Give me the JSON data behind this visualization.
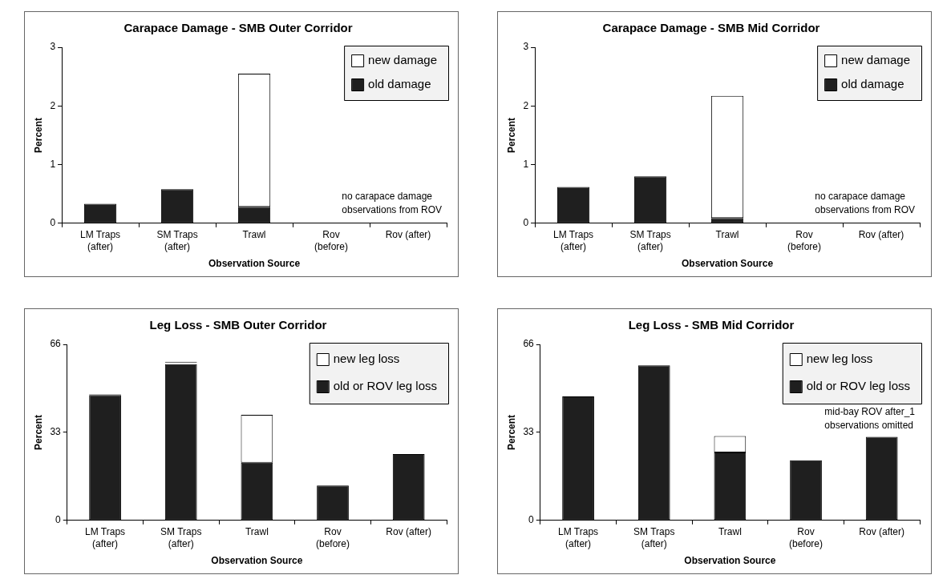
{
  "chart_data": [
    {
      "type": "bar",
      "title": "Carapace Damage - SMB Outer Corridor",
      "xlabel": "Observation Source",
      "ylabel": "Percent",
      "categories": [
        "LM Traps (after)",
        "SM Traps (after)",
        "Trawl",
        "Rov (before)",
        "Rov (after)"
      ],
      "stacked": true,
      "series": [
        {
          "name": "old damage",
          "color": "#1f1f1f",
          "values": [
            0.33,
            0.58,
            0.28,
            0,
            0
          ]
        },
        {
          "name": "new damage",
          "color": "#ffffff",
          "values": [
            0,
            0,
            2.27,
            0,
            0
          ]
        }
      ],
      "ylim": [
        0,
        3
      ],
      "yticks": [
        0,
        1,
        2,
        3
      ],
      "grid": false,
      "legend": "top right",
      "annotations": [
        "no carapace damage observations from ROV"
      ]
    },
    {
      "type": "bar",
      "title": "Carapace Damage - SMB Mid Corridor",
      "xlabel": "Observation Source",
      "ylabel": "Percent",
      "categories": [
        "LM Traps (after)",
        "SM Traps (after)",
        "Trawl",
        "Rov (before)",
        "Rov (after)"
      ],
      "stacked": true,
      "series": [
        {
          "name": "old damage",
          "color": "#1f1f1f",
          "values": [
            0.62,
            0.8,
            0.09,
            0,
            0
          ]
        },
        {
          "name": "new damage",
          "color": "#ffffff",
          "values": [
            0,
            0,
            2.08,
            0,
            0
          ]
        }
      ],
      "ylim": [
        0,
        3
      ],
      "yticks": [
        0,
        1,
        2,
        3
      ],
      "grid": false,
      "legend": "top right",
      "annotations": [
        "no carapace damage observations from ROV"
      ]
    },
    {
      "type": "bar",
      "title": "Leg Loss - SMB Outer Corridor",
      "xlabel": "Observation Source",
      "ylabel": "Percent",
      "categories": [
        "LM Traps (after)",
        "SM Traps (after)",
        "Trawl",
        "Rov (before)",
        "Rov (after)"
      ],
      "stacked": true,
      "series": [
        {
          "name": "old or ROV leg loss",
          "color": "#1f1f1f",
          "values": [
            47,
            58.6,
            21.6,
            13.1,
            24.9
          ]
        },
        {
          "name": "new leg loss",
          "color": "#ffffff",
          "values": [
            0.4,
            0.9,
            18,
            0,
            0
          ]
        }
      ],
      "ylim": [
        0,
        66
      ],
      "yticks": [
        0,
        33,
        66
      ],
      "grid": false,
      "legend": "top right"
    },
    {
      "type": "bar",
      "title": "Leg Loss - SMB Mid Corridor",
      "xlabel": "Observation Source",
      "ylabel": "Percent",
      "categories": [
        "LM Traps (after)",
        "SM Traps (after)",
        "Trawl",
        "Rov (before)",
        "Rov (after)"
      ],
      "stacked": true,
      "series": [
        {
          "name": "old or ROV leg loss",
          "color": "#1f1f1f",
          "values": [
            46.5,
            58.1,
            25.5,
            22.5,
            31.3
          ]
        },
        {
          "name": "new leg loss",
          "color": "#ffffff",
          "values": [
            0,
            0,
            6.1,
            0,
            0
          ]
        }
      ],
      "ylim": [
        0,
        66
      ],
      "yticks": [
        0,
        33,
        66
      ],
      "grid": false,
      "legend": "top right",
      "annotations": [
        "mid-bay ROV after_1 observations omitted"
      ]
    }
  ]
}
